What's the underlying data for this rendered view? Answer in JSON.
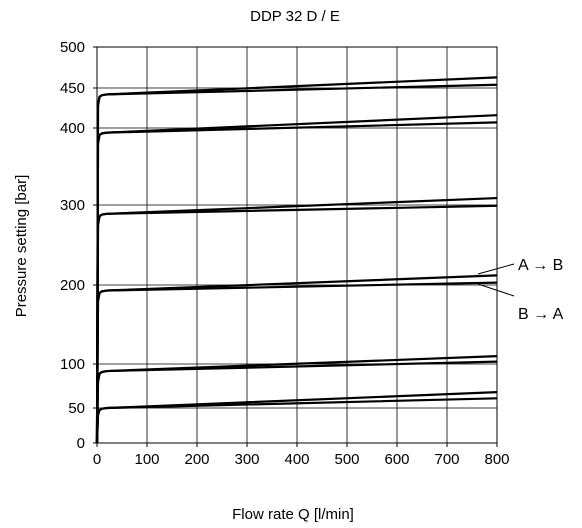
{
  "chart_data": {
    "type": "line",
    "title": "DDP 32 D / E",
    "xlabel": "Flow rate Q [l/min]",
    "ylabel": "Pressure setting [bar]",
    "xlim": [
      0,
      800
    ],
    "ylim": [
      0,
      500
    ],
    "x_ticks": [
      0,
      100,
      200,
      300,
      400,
      500,
      600,
      700,
      800
    ],
    "x_tick_labels": [
      "0",
      "100",
      "200",
      "300",
      "400",
      "500",
      "600",
      "700",
      "800"
    ],
    "y_ticks": [
      0,
      50,
      100,
      200,
      300,
      400,
      450,
      500
    ],
    "y_tick_labels": [
      "0",
      "50",
      "100",
      "200",
      "300",
      "400",
      "450",
      "500"
    ],
    "grid": true,
    "annotations": [
      "A → B",
      "B → A"
    ],
    "series": [
      {
        "x": [
          0,
          2,
          5,
          10,
          20,
          800
        ],
        "y": [
          0,
          40,
          47,
          49,
          50,
          68
        ]
      },
      {
        "x": [
          0,
          2,
          5,
          10,
          20,
          800
        ],
        "y": [
          0,
          40,
          47,
          49,
          50,
          61
        ]
      },
      {
        "x": [
          0,
          2,
          5,
          10,
          20,
          800
        ],
        "y": [
          0,
          80,
          89,
          91,
          92,
          110
        ]
      },
      {
        "x": [
          0,
          2,
          5,
          10,
          20,
          800
        ],
        "y": [
          0,
          80,
          89,
          91,
          92,
          103
        ]
      },
      {
        "x": [
          0,
          2,
          5,
          10,
          20,
          800
        ],
        "y": [
          0,
          180,
          190,
          192,
          193,
          212
        ]
      },
      {
        "x": [
          0,
          2,
          5,
          10,
          20,
          800
        ],
        "y": [
          0,
          180,
          190,
          192,
          193,
          203
        ]
      },
      {
        "x": [
          0,
          2,
          5,
          10,
          20,
          800
        ],
        "y": [
          0,
          275,
          286,
          288,
          289,
          309
        ]
      },
      {
        "x": [
          0,
          2,
          5,
          10,
          20,
          800
        ],
        "y": [
          0,
          275,
          286,
          288,
          289,
          299
        ]
      },
      {
        "x": [
          0,
          2,
          5,
          10,
          20,
          800
        ],
        "y": [
          0,
          380,
          391,
          393,
          394,
          416
        ]
      },
      {
        "x": [
          0,
          2,
          5,
          10,
          20,
          800
        ],
        "y": [
          0,
          380,
          391,
          393,
          394,
          407
        ]
      },
      {
        "x": [
          0,
          2,
          5,
          10,
          20,
          800
        ],
        "y": [
          0,
          428,
          439,
          441,
          442,
          463
        ]
      },
      {
        "x": [
          0,
          2,
          5,
          10,
          20,
          800
        ],
        "y": [
          0,
          428,
          439,
          441,
          442,
          454
        ]
      }
    ]
  }
}
